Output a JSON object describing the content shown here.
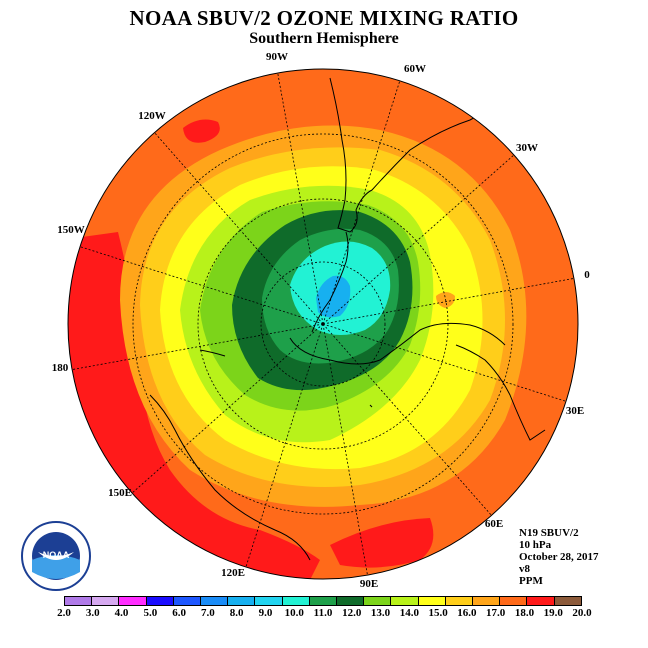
{
  "header": {
    "title": "NOAA SBUV/2 OZONE MIXING RATIO",
    "subtitle": "Southern Hemisphere"
  },
  "map": {
    "longitude_labels": [
      "90W",
      "60W",
      "30W",
      "0",
      "30E",
      "60E",
      "90E",
      "120E",
      "150E",
      "180",
      "150W",
      "120W"
    ]
  },
  "info": {
    "lines": [
      "N19 SBUV/2",
      "10 hPa",
      "October 28, 2017",
      "v8",
      "PPM"
    ]
  },
  "legend": {
    "ticks": [
      "2.0",
      "3.0",
      "4.0",
      "5.0",
      "6.0",
      "7.0",
      "8.0",
      "9.0",
      "10.0",
      "11.0",
      "12.0",
      "13.0",
      "14.0",
      "15.0",
      "16.0",
      "17.0",
      "18.0",
      "19.0",
      "20.0"
    ],
    "colors": [
      "#b07ae8",
      "#d6a9f0",
      "#ff2cff",
      "#1a0cff",
      "#1e57ff",
      "#1a8cf7",
      "#17b0f0",
      "#22d4f0",
      "#22f2d4",
      "#1ea04a",
      "#0f6b2a",
      "#7cd41a",
      "#b8f21a",
      "#ffff1a",
      "#ffce1a",
      "#ffa51a",
      "#ff6a1a",
      "#ff1a1a",
      "#8c5a3a"
    ]
  },
  "logo": {
    "text": "NOAA",
    "ring_text": "NATIONAL OCEANIC AND ATMOSPHERIC ADMINISTRATION · U.S. DEPARTMENT OF COMMERCE"
  }
}
